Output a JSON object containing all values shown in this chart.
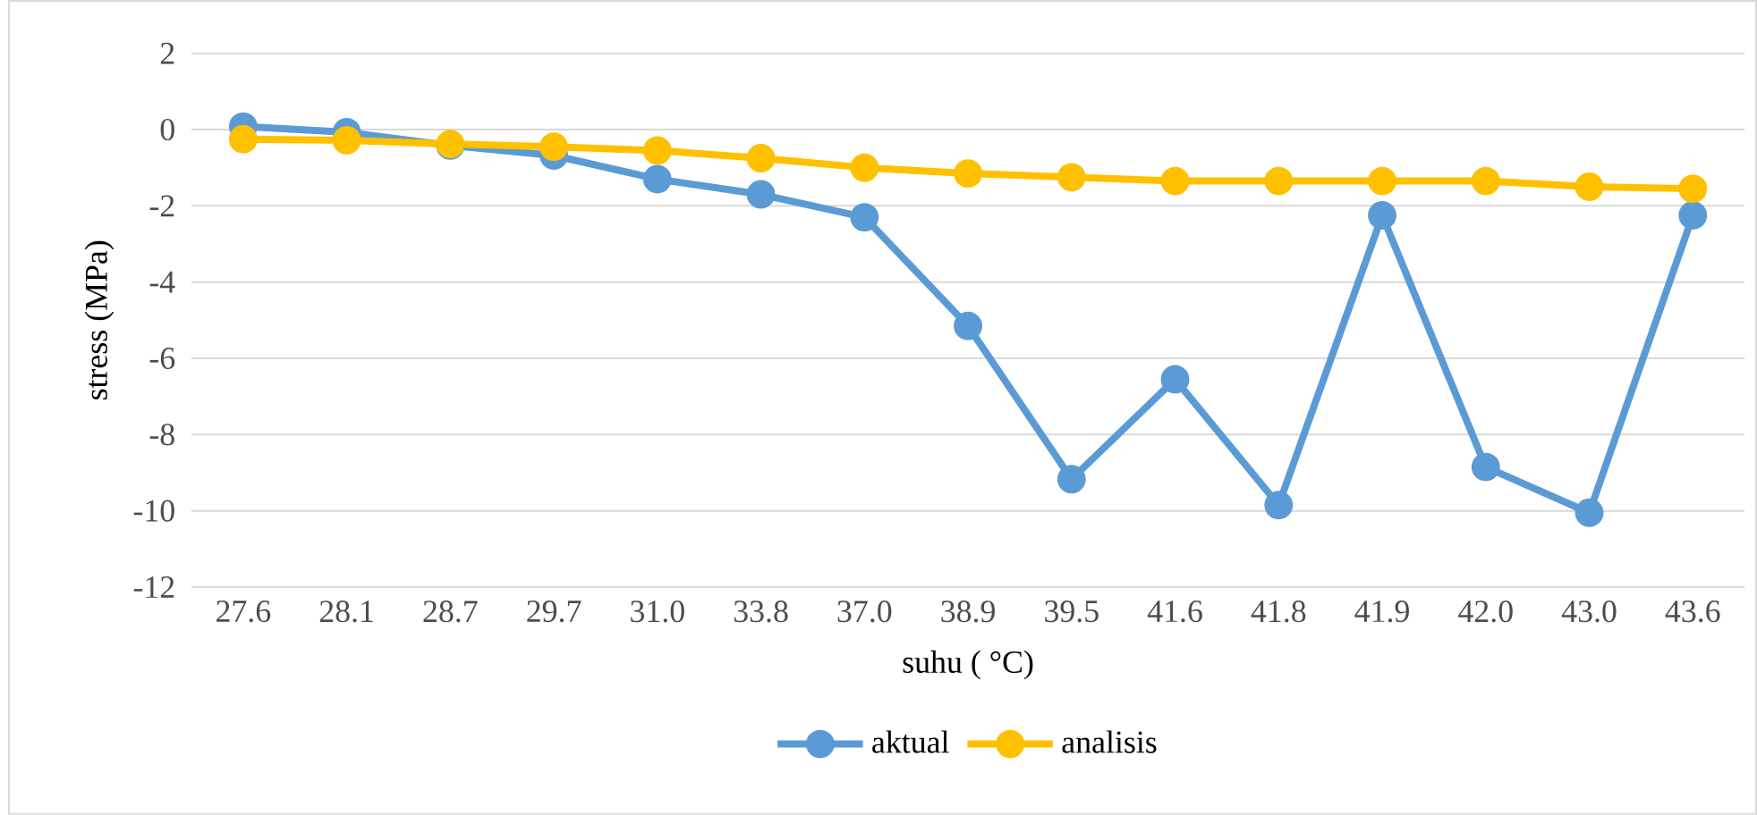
{
  "chart_data": {
    "type": "line",
    "xlabel": "suhu ( °C)",
    "ylabel": "stress (MPa)",
    "categories": [
      "27.6",
      "28.1",
      "28.7",
      "29.7",
      "31.0",
      "33.8",
      "37.0",
      "38.9",
      "39.5",
      "41.6",
      "41.8",
      "41.9",
      "42.0",
      "43.0",
      "43.6"
    ],
    "series": [
      {
        "name": "aktual",
        "color": "#5b9bd5",
        "values": [
          0.08,
          -0.07,
          -0.42,
          -0.68,
          -1.3,
          -1.7,
          -2.3,
          -5.15,
          -9.17,
          -6.55,
          -9.85,
          -2.25,
          -8.85,
          -10.05,
          -2.25
        ]
      },
      {
        "name": "analisis",
        "color": "#ffc000",
        "values": [
          -0.25,
          -0.28,
          -0.38,
          -0.45,
          -0.55,
          -0.75,
          -1.0,
          -1.15,
          -1.25,
          -1.35,
          -1.35,
          -1.35,
          -1.35,
          -1.5,
          -1.55
        ]
      }
    ],
    "ylim": [
      -12,
      2
    ],
    "yticks": [
      -12,
      -10,
      -8,
      -6,
      -4,
      -2,
      0,
      2
    ],
    "grid": "y",
    "legend": "bottom",
    "marker": "circle",
    "line_style": "solid"
  }
}
